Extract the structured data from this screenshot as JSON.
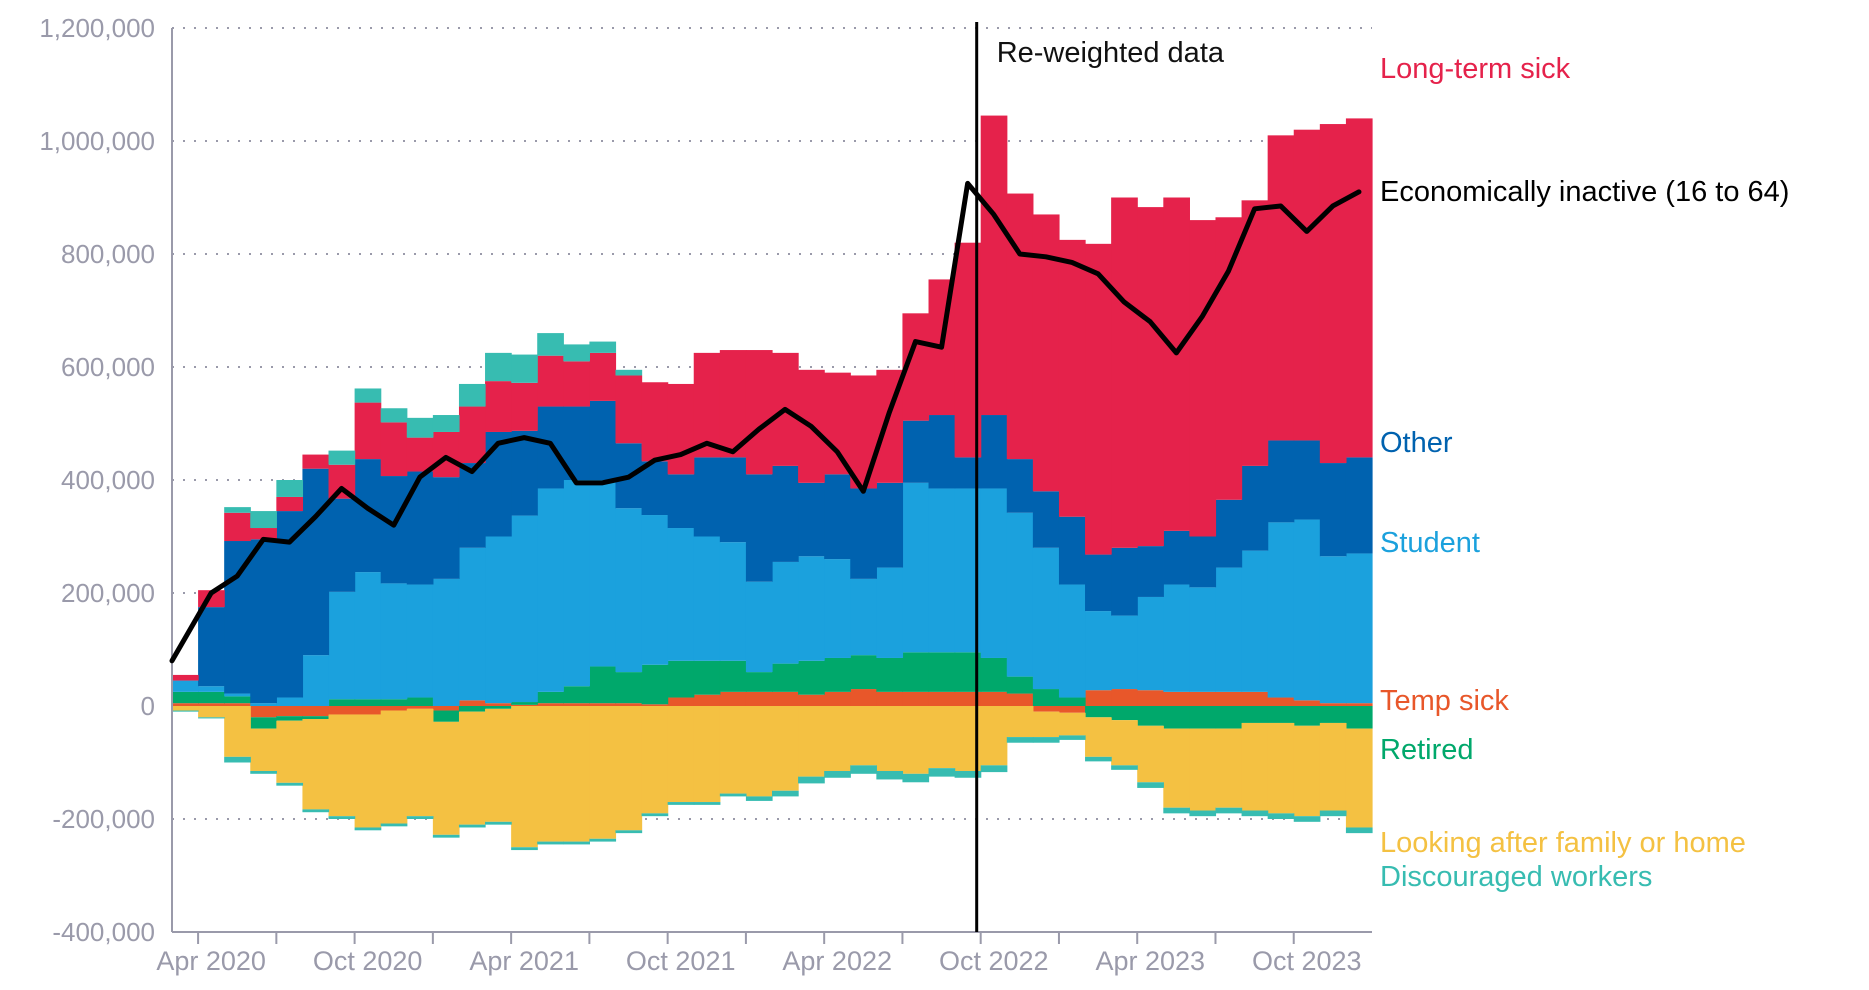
{
  "chart_data": {
    "type": "area",
    "stacked": true,
    "title": "",
    "xlabel": "",
    "ylabel": "",
    "ylim": [
      -400000,
      1200000
    ],
    "y_ticks": [
      -400000,
      -200000,
      0,
      200000,
      400000,
      600000,
      800000,
      1000000,
      1200000
    ],
    "y_tick_labels": [
      "-400,000",
      "-200,000",
      "0",
      "200,000",
      "400,000",
      "600,000",
      "800,000",
      "1,000,000",
      "1,200,000"
    ],
    "x": [
      "2020-03",
      "2020-04",
      "2020-05",
      "2020-06",
      "2020-07",
      "2020-08",
      "2020-09",
      "2020-10",
      "2020-11",
      "2020-12",
      "2021-01",
      "2021-02",
      "2021-03",
      "2021-04",
      "2021-05",
      "2021-06",
      "2021-07",
      "2021-08",
      "2021-09",
      "2021-10",
      "2021-11",
      "2021-12",
      "2022-01",
      "2022-02",
      "2022-03",
      "2022-04",
      "2022-05",
      "2022-06",
      "2022-07",
      "2022-08",
      "2022-09",
      "2022-10",
      "2022-11",
      "2022-12",
      "2023-01",
      "2023-02",
      "2023-03",
      "2023-04",
      "2023-05",
      "2023-06",
      "2023-07",
      "2023-08",
      "2023-09",
      "2023-10",
      "2023-11",
      "2023-12"
    ],
    "x_tick_labels": [
      "Apr 2020",
      "Oct 2020",
      "Apr 2021",
      "Oct 2021",
      "Apr 2022",
      "Oct 2022",
      "Apr 2023",
      "Oct 2023"
    ],
    "x_ticks": [
      "2020-04",
      "2020-10",
      "2021-04",
      "2021-10",
      "2022-04",
      "2022-10",
      "2023-04",
      "2023-10"
    ],
    "grid": {
      "horizontal": true,
      "style": "dotted"
    },
    "legend": "labels at right end of series",
    "series": [
      {
        "name": "Temp sick",
        "color": "#e8572a",
        "stack": "both",
        "values": [
          5000,
          5000,
          5000,
          -20000,
          -18000,
          -18000,
          -15000,
          -15000,
          -8000,
          -5000,
          -8000,
          10000,
          5000,
          2000,
          5000,
          5000,
          5000,
          5000,
          3000,
          15000,
          20000,
          25000,
          25000,
          25000,
          20000,
          25000,
          30000,
          25000,
          25000,
          25000,
          25000,
          25000,
          22000,
          -10000,
          -12000,
          28000,
          30000,
          28000,
          25000,
          25000,
          25000,
          25000,
          15000,
          10000,
          5000,
          5000
        ]
      },
      {
        "name": "Retired",
        "color": "#00a86b",
        "stack": "both",
        "values": [
          20000,
          20000,
          12000,
          -20000,
          -8000,
          -5000,
          12000,
          12000,
          12000,
          15000,
          -20000,
          -10000,
          -5000,
          5000,
          20000,
          30000,
          65000,
          55000,
          70000,
          65000,
          60000,
          55000,
          35000,
          50000,
          60000,
          60000,
          60000,
          60000,
          70000,
          70000,
          70000,
          60000,
          30000,
          30000,
          15000,
          -20000,
          -25000,
          -35000,
          -40000,
          -40000,
          -40000,
          -30000,
          -30000,
          -35000,
          -30000,
          -40000
        ]
      },
      {
        "name": "Student",
        "color": "#1ba1dd",
        "stack": "both",
        "values": [
          20000,
          10000,
          5000,
          5000,
          15000,
          90000,
          190000,
          225000,
          205000,
          200000,
          225000,
          270000,
          295000,
          330000,
          360000,
          365000,
          330000,
          290000,
          265000,
          235000,
          220000,
          210000,
          160000,
          180000,
          185000,
          175000,
          135000,
          160000,
          300000,
          290000,
          290000,
          300000,
          290000,
          250000,
          200000,
          140000,
          130000,
          165000,
          190000,
          185000,
          220000,
          250000,
          310000,
          320000,
          260000,
          265000
        ]
      },
      {
        "name": "Other",
        "color": "#0062af",
        "stack": "both",
        "values": [
          0,
          140000,
          270000,
          290000,
          330000,
          330000,
          165000,
          200000,
          190000,
          200000,
          180000,
          150000,
          185000,
          150000,
          145000,
          130000,
          140000,
          115000,
          95000,
          95000,
          140000,
          150000,
          190000,
          170000,
          130000,
          150000,
          160000,
          150000,
          110000,
          130000,
          55000,
          130000,
          95000,
          100000,
          120000,
          100000,
          120000,
          90000,
          95000,
          90000,
          120000,
          150000,
          145000,
          140000,
          165000,
          170000
        ]
      },
      {
        "name": "Long-term sick",
        "color": "#e5224b",
        "stack": "both",
        "values": [
          10000,
          30000,
          50000,
          20000,
          25000,
          25000,
          60000,
          100000,
          95000,
          60000,
          80000,
          100000,
          90000,
          85000,
          90000,
          80000,
          85000,
          120000,
          140000,
          160000,
          185000,
          190000,
          220000,
          200000,
          200000,
          180000,
          200000,
          200000,
          190000,
          240000,
          380000,
          530000,
          470000,
          490000,
          490000,
          550000,
          620000,
          600000,
          590000,
          560000,
          500000,
          470000,
          540000,
          550000,
          600000,
          600000
        ]
      },
      {
        "name": "Looking after family or home",
        "color": "#f4c142",
        "stack": "negative",
        "values": [
          -8000,
          -20000,
          -90000,
          -75000,
          -110000,
          -160000,
          -180000,
          -200000,
          -200000,
          -190000,
          -200000,
          -200000,
          -200000,
          -250000,
          -240000,
          -240000,
          -235000,
          -220000,
          -190000,
          -170000,
          -170000,
          -155000,
          -160000,
          -150000,
          -125000,
          -115000,
          -105000,
          -115000,
          -120000,
          -110000,
          -115000,
          -105000,
          -55000,
          -45000,
          -40000,
          -70000,
          -80000,
          -100000,
          -140000,
          -145000,
          -140000,
          -155000,
          -160000,
          -160000,
          -155000,
          -175000
        ]
      },
      {
        "name": "Discouraged workers",
        "color": "#37bcb1",
        "stack": "negative",
        "values": [
          -2000,
          -2000,
          -10000,
          -5000,
          -5000,
          -5000,
          -5000,
          -5000,
          -5000,
          -5000,
          -5000,
          -5000,
          -5000,
          -5000,
          -5000,
          -5000,
          -5000,
          -5000,
          -5000,
          -5000,
          -5000,
          -5000,
          -8000,
          -10000,
          -12000,
          -12000,
          -15000,
          -15000,
          -15000,
          -15000,
          -12000,
          -12000,
          -10000,
          -10000,
          -8000,
          -8000,
          -8000,
          -10000,
          -10000,
          -10000,
          -10000,
          -10000,
          -10000,
          -10000,
          -10000,
          -10000
        ]
      },
      {
        "name": "Discouraged workers",
        "color": "#37bcb1",
        "stack": "positive",
        "values": [
          0,
          0,
          10000,
          30000,
          30000,
          0,
          25000,
          25000,
          25000,
          35000,
          30000,
          40000,
          50000,
          50000,
          40000,
          30000,
          20000,
          10000,
          0,
          0,
          0,
          0,
          0,
          0,
          0,
          0,
          0,
          0,
          0,
          0,
          0,
          0,
          0,
          0,
          0,
          0,
          0,
          0,
          0,
          0,
          0,
          0,
          0,
          0,
          0,
          0
        ]
      }
    ],
    "line_series": {
      "name": "Economically inactive (16 to 64)",
      "color": "#000000",
      "values": [
        80000,
        200000,
        230000,
        295000,
        290000,
        335000,
        385000,
        350000,
        320000,
        405000,
        440000,
        415000,
        465000,
        475000,
        465000,
        395000,
        395000,
        405000,
        435000,
        445000,
        465000,
        450000,
        490000,
        525000,
        495000,
        450000,
        380000,
        520000,
        645000,
        635000,
        925000,
        870000,
        800000,
        795000,
        785000,
        765000,
        715000,
        680000,
        625000,
        690000,
        770000,
        880000,
        885000,
        840000,
        885000,
        910000
      ]
    },
    "annotations": [
      {
        "text": "Re-weighted data",
        "at": "2022-09"
      }
    ]
  }
}
